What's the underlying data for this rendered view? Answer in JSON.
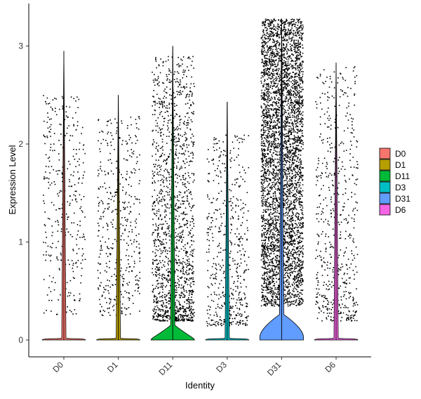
{
  "chart_data": {
    "type": "violin",
    "xlabel": "Identity",
    "ylabel": "Expression Level",
    "categories": [
      "D0",
      "D1",
      "D11",
      "D3",
      "D31",
      "D6"
    ],
    "ylim": [
      -0.18,
      3.3
    ],
    "yticks": [
      0,
      1,
      2,
      3
    ],
    "grid": false,
    "legend_position": "right",
    "legend": [
      {
        "label": "D0",
        "color": "#F8766D"
      },
      {
        "label": "D1",
        "color": "#B79F00"
      },
      {
        "label": "D11",
        "color": "#00BA38"
      },
      {
        "label": "D3",
        "color": "#00BFC4"
      },
      {
        "label": "D31",
        "color": "#619CFF"
      },
      {
        "label": "D6",
        "color": "#F564E3"
      }
    ],
    "series": [
      {
        "category": "D0",
        "max": 2.95,
        "density_at_zero": "high",
        "nonzero_points": 340,
        "nonzero_range": [
          0.25,
          2.5
        ]
      },
      {
        "category": "D1",
        "max": 2.5,
        "density_at_zero": "high",
        "nonzero_points": 440,
        "nonzero_range": [
          0.25,
          2.3
        ]
      },
      {
        "category": "D11",
        "max": 3.0,
        "density_at_zero": "high",
        "nonzero_points": 1500,
        "nonzero_range": [
          0.2,
          2.9
        ]
      },
      {
        "category": "D3",
        "max": 2.43,
        "density_at_zero": "high",
        "nonzero_points": 520,
        "nonzero_range": [
          0.15,
          2.1
        ]
      },
      {
        "category": "D31",
        "max": 3.28,
        "density_at_zero": "high",
        "nonzero_points": 4200,
        "nonzero_range": [
          0.35,
          3.28
        ]
      },
      {
        "category": "D6",
        "max": 2.83,
        "density_at_zero": "high",
        "nonzero_points": 560,
        "nonzero_range": [
          0.2,
          2.8
        ]
      }
    ]
  }
}
